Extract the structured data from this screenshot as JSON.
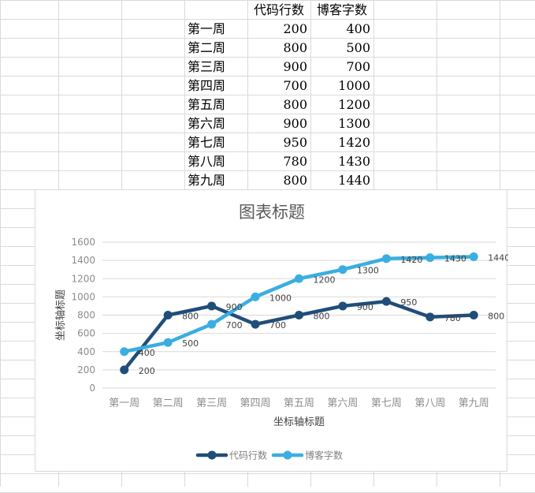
{
  "table": {
    "headers": [
      "代码行数",
      "博客字数"
    ],
    "rows": [
      {
        "week": "第一周",
        "code": "200",
        "blog": "400"
      },
      {
        "week": "第二周",
        "code": "800",
        "blog": "500"
      },
      {
        "week": "第三周",
        "code": "900",
        "blog": "700"
      },
      {
        "week": "第四周",
        "code": "700",
        "blog": "1000"
      },
      {
        "week": "第五周",
        "code": "800",
        "blog": "1200"
      },
      {
        "week": "第六周",
        "code": "900",
        "blog": "1300"
      },
      {
        "week": "第七周",
        "code": "950",
        "blog": "1420"
      },
      {
        "week": "第八周",
        "code": "780",
        "blog": "1430"
      },
      {
        "week": "第九周",
        "code": "800",
        "blog": "1440"
      }
    ]
  },
  "chart_data": {
    "type": "line",
    "title": "图表标题",
    "xlabel": "坐标轴标题",
    "ylabel": "坐标轴标题",
    "categories": [
      "第一周",
      "第二周",
      "第三周",
      "第四周",
      "第五周",
      "第六周",
      "第七周",
      "第八周",
      "第九周"
    ],
    "series": [
      {
        "name": "代码行数",
        "color": "#1f4e79",
        "values": [
          200,
          800,
          900,
          700,
          800,
          900,
          950,
          780,
          800
        ]
      },
      {
        "name": "博客字数",
        "color": "#3aaee0",
        "values": [
          400,
          500,
          700,
          1000,
          1200,
          1300,
          1420,
          1430,
          1440
        ]
      }
    ],
    "ylim": [
      0,
      1600
    ],
    "yticks": [
      0,
      200,
      400,
      600,
      800,
      1000,
      1200,
      1400,
      1600
    ],
    "grid": true,
    "data_labels": true,
    "legend_position": "bottom"
  }
}
